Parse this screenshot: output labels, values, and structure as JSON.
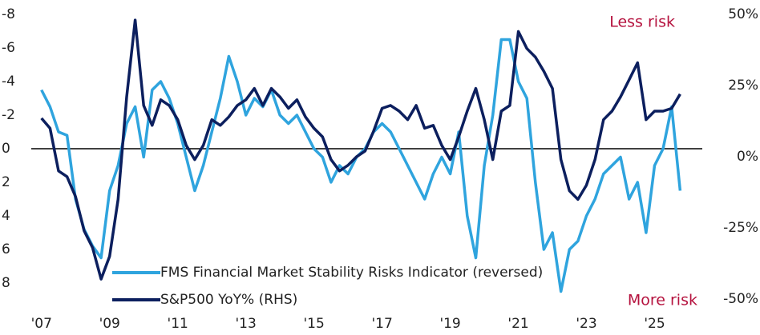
{
  "chart_data": {
    "type": "line",
    "x": [
      2007.0,
      2007.25,
      2007.5,
      2007.75,
      2008.0,
      2008.25,
      2008.5,
      2008.75,
      2009.0,
      2009.25,
      2009.5,
      2009.75,
      2010.0,
      2010.25,
      2010.5,
      2010.75,
      2011.0,
      2011.25,
      2011.5,
      2011.75,
      2012.0,
      2012.25,
      2012.5,
      2012.75,
      2013.0,
      2013.25,
      2013.5,
      2013.75,
      2014.0,
      2014.25,
      2014.5,
      2014.75,
      2015.0,
      2015.25,
      2015.5,
      2015.75,
      2016.0,
      2016.25,
      2016.5,
      2016.75,
      2017.0,
      2017.25,
      2017.5,
      2017.75,
      2018.0,
      2018.25,
      2018.5,
      2018.75,
      2019.0,
      2019.25,
      2019.5,
      2019.75,
      2020.0,
      2020.25,
      2020.5,
      2020.75,
      2021.0,
      2021.25,
      2021.5,
      2021.75,
      2022.0,
      2022.25,
      2022.5,
      2022.75,
      2023.0,
      2023.25,
      2023.5,
      2023.75,
      2024.0,
      2024.25,
      2024.5,
      2024.75,
      2025.0,
      2025.25,
      2025.5,
      2025.75
    ],
    "series": [
      {
        "name": "FMS Financial Market Stability Risks Indicator (reversed)",
        "color": "#2fa4de",
        "axis": "y",
        "values": [
          -3.5,
          -2.5,
          -1,
          -0.8,
          3,
          4.8,
          5.8,
          6.5,
          2.5,
          1,
          -1.5,
          -2.5,
          0.5,
          -3.5,
          -4,
          -3,
          -1.5,
          0.5,
          2.5,
          1,
          -1,
          -3,
          -5.5,
          -4,
          -2,
          -3,
          -2.5,
          -3.5,
          -2,
          -1.5,
          -2,
          -1,
          0,
          0.5,
          2,
          1,
          1.5,
          0.5,
          0,
          -1,
          -1.5,
          -1,
          0,
          1,
          2,
          3,
          1.5,
          0.5,
          1.5,
          -1,
          4,
          6.5,
          1,
          -2,
          -6.5,
          -6.5,
          -4,
          -3,
          2,
          6,
          5,
          8.5,
          6,
          5.5,
          4,
          3,
          1.5,
          1,
          0.5,
          3,
          2,
          5,
          1,
          0,
          -2.5,
          2.5
        ]
      },
      {
        "name": "S&P500 YoY% (RHS)",
        "color": "#0c1f5e",
        "axis": "y2",
        "values": [
          13.5,
          10,
          -5,
          -7,
          -14,
          -26,
          -32,
          -43,
          -35,
          -15,
          21,
          48,
          18,
          11,
          20,
          18,
          13,
          4,
          -1,
          4,
          13,
          11,
          14,
          18,
          20,
          24,
          18,
          24,
          21,
          17,
          20,
          14,
          10,
          7,
          -1,
          -5,
          -3,
          0,
          2,
          9,
          17,
          18,
          16,
          13,
          18,
          10,
          11,
          4,
          -1,
          7,
          16,
          24,
          13,
          -1,
          16,
          18,
          44,
          38,
          35,
          30,
          24,
          -1,
          -12,
          -15,
          -10,
          -1,
          13,
          16,
          21,
          27,
          33,
          13,
          16,
          16,
          17,
          22
        ]
      }
    ],
    "xlim": [
      2006.7,
      2026.4
    ],
    "xticks": [
      {
        "value": 2007,
        "label": "'07"
      },
      {
        "value": 2009,
        "label": "'09"
      },
      {
        "value": 2011,
        "label": "'11"
      },
      {
        "value": 2013,
        "label": "'13"
      },
      {
        "value": 2015,
        "label": "'15"
      },
      {
        "value": 2017,
        "label": "'17"
      },
      {
        "value": 2019,
        "label": "'19"
      },
      {
        "value": 2021,
        "label": "'21"
      },
      {
        "value": 2023,
        "label": "'23"
      },
      {
        "value": 2025,
        "label": "'25"
      }
    ],
    "ylim": [
      8,
      -8
    ],
    "yticks": [
      -8,
      -6,
      -4,
      -2,
      0,
      2,
      4,
      6,
      8
    ],
    "y2lim": [
      -50,
      50
    ],
    "y2ticks": [
      {
        "value": 50,
        "label": "50%"
      },
      {
        "value": 25,
        "label": "25%"
      },
      {
        "value": 0,
        "label": "0%"
      },
      {
        "value": -25,
        "label": "-25%"
      },
      {
        "value": -50,
        "label": "-50%"
      }
    ],
    "annotations": [
      "Less risk",
      "More risk"
    ],
    "legend": "bottom-left"
  }
}
